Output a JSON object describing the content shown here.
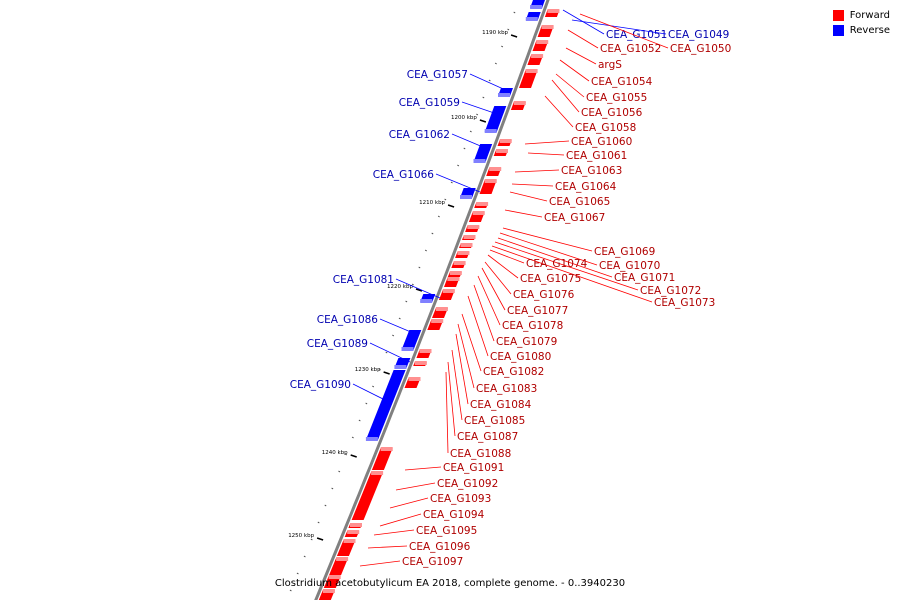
{
  "caption": "Clostridium acetobutylicum EA 2018, complete genome. - 0..3940230",
  "legend": {
    "forward_label": "Forward",
    "forward_color": "#ff0000",
    "reverse_label": "Reverse",
    "reverse_color": "#0000ff"
  },
  "colors": {
    "forward": "#ff0000",
    "forward_light": "#ff9090",
    "reverse": "#0000ff",
    "reverse_light": "#8080ff",
    "forward_text": "#b00000",
    "reverse_text": "#0000b0",
    "backbone": "#808080"
  },
  "ticks": [
    "1190 kbp",
    "1200 kbp",
    "1210 kbp",
    "1220 kbp",
    "1230 kbp",
    "1240 kbp",
    "1250 kbp"
  ],
  "reverse_labels": [
    "CEA_G1051",
    "CEA_G1049",
    "CEA_G1057",
    "CEA_G1059",
    "CEA_G1062",
    "CEA_G1066",
    "CEA_G1081",
    "CEA_G1086",
    "CEA_G1089",
    "CEA_G1090"
  ],
  "forward_labels": [
    "CEA_G1050",
    "CEA_G1052",
    "argS",
    "CEA_G1054",
    "CEA_G1055",
    "CEA_G1056",
    "CEA_G1058",
    "CEA_G1060",
    "CEA_G1061",
    "CEA_G1063",
    "CEA_G1064",
    "CEA_G1065",
    "CEA_G1067",
    "CEA_G1069",
    "CEA_G1070",
    "CEA_G1071",
    "CEA_G1072",
    "CEA_G1073",
    "CEA_G1074",
    "CEA_G1075",
    "CEA_G1076",
    "CEA_G1077",
    "CEA_G1078",
    "CEA_G1079",
    "CEA_G1080",
    "CEA_G1082",
    "CEA_G1083",
    "CEA_G1084",
    "CEA_G1085",
    "CEA_G1087",
    "CEA_G1088",
    "CEA_G1091",
    "CEA_G1092",
    "CEA_G1093",
    "CEA_G1094",
    "CEA_G1095",
    "CEA_G1096",
    "CEA_G1097"
  ]
}
